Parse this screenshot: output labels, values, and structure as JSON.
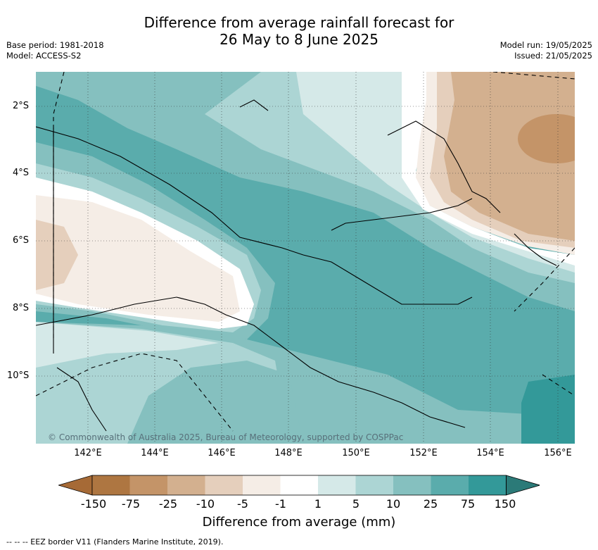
{
  "title_line1": "Difference from average rainfall forecast for",
  "title_line2": "26 May to 8 June 2025",
  "meta_left": {
    "base_period": "Base period: 1981-2018",
    "model": "Model: ACCESS-S2"
  },
  "meta_right": {
    "model_run": "Model run: 19/05/2025",
    "issued": "Issued: 21/05/2025"
  },
  "y_ticks": [
    "2°S",
    "4°S",
    "6°S",
    "8°S",
    "10°S"
  ],
  "x_ticks": [
    "142°E",
    "144°E",
    "146°E",
    "148°E",
    "150°E",
    "152°E",
    "154°E",
    "156°E"
  ],
  "copyright": "© Commonwealth of Australia 2025, Bureau of Meteorology, supported by COSPPac",
  "colorbar": {
    "labels": [
      "-150",
      "-75",
      "-25",
      "-10",
      "-5",
      "-1",
      "1",
      "5",
      "10",
      "25",
      "75",
      "150"
    ],
    "colors": [
      "#a66a36",
      "#ae7641",
      "#c49468",
      "#d3b08f",
      "#e5cfbc",
      "#f5ede6",
      "#ffffff",
      "#d5e9e8",
      "#acd5d4",
      "#85c0bf",
      "#5aacac",
      "#339999",
      "#2b7a78"
    ],
    "title": "Difference from average (mm)"
  },
  "eez_note": "--  --  -- EEZ border V11 (Flanders Marine Institute, 2019)."
}
